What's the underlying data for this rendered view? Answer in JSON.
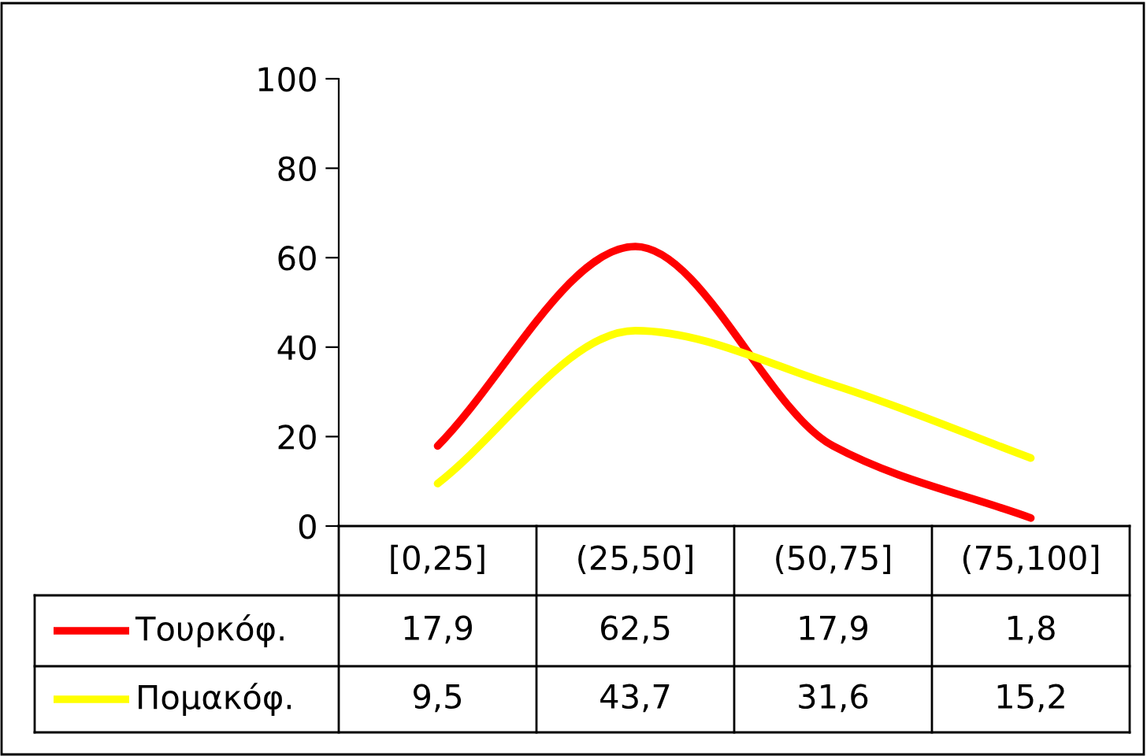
{
  "chart_data": {
    "type": "line",
    "categories": [
      "[0,25]",
      "(25,50]",
      "(50,75]",
      "(75,100]"
    ],
    "series": [
      {
        "name": "Τουρκόφ.",
        "color": "#ff0000",
        "values": [
          17.9,
          62.5,
          17.9,
          1.8
        ],
        "value_labels": [
          "17,9",
          "62,5",
          "17,9",
          "1,8"
        ]
      },
      {
        "name": "Πομακόφ.",
        "color": "#ffff00",
        "values": [
          9.5,
          43.7,
          31.6,
          15.2
        ],
        "value_labels": [
          "9,5",
          "43,7",
          "31,6",
          "15,2"
        ]
      }
    ],
    "ylim": [
      0,
      100
    ],
    "yticks": [
      0,
      20,
      40,
      60,
      80,
      100
    ],
    "grid": false,
    "legend": "bottom left",
    "marker": "none",
    "line_style": "solid"
  }
}
